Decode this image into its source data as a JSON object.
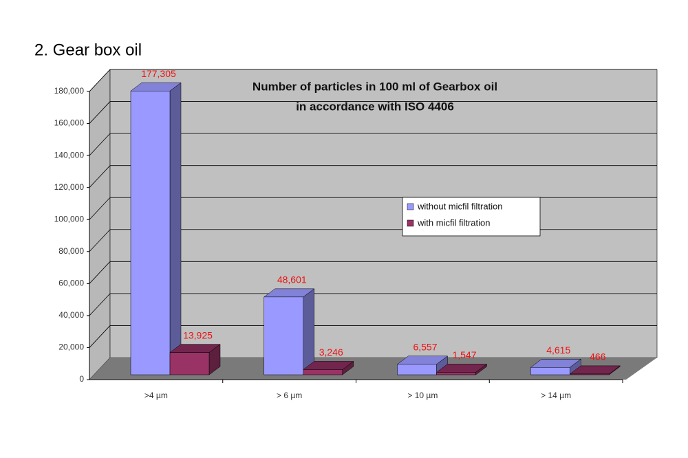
{
  "heading": "2. Gear box oil",
  "chart_data": {
    "type": "bar3d",
    "title": [
      "Number of particles in 100 ml of Gearbox oil",
      "in accordance with ISO 4406"
    ],
    "categories": [
      ">4 µm",
      "> 6 µm",
      "> 10 µm",
      "> 14 µm"
    ],
    "series": [
      {
        "name": "without micfil filtration",
        "color": "#9999ff",
        "values": [
          177305,
          48601,
          6557,
          4615
        ],
        "value_labels": [
          "177,305",
          "48,601",
          "6,557",
          "4,615"
        ]
      },
      {
        "name": "with micfil filtration",
        "color": "#993366",
        "values": [
          13925,
          3246,
          1547,
          466
        ],
        "value_labels": [
          "13,925",
          "3,246",
          "1,547",
          "466"
        ]
      }
    ],
    "ylim": [
      0,
      180000
    ],
    "yticks": [
      0,
      {
        "value": 20000,
        "label": "20,000"
      },
      {
        "value": 40000,
        "label": "40,000"
      },
      {
        "value": 60000,
        "label": "60,000"
      },
      {
        "value": 80000,
        "label": "80,000"
      },
      {
        "value": 100000,
        "label": "100,000"
      },
      {
        "value": 120000,
        "label": "120,000"
      },
      {
        "value": 140000,
        "label": "140,000"
      },
      {
        "value": 160000,
        "label": "160,000"
      },
      {
        "value": 180000,
        "label": "180,000"
      }
    ],
    "grid": true,
    "legend": "right"
  }
}
